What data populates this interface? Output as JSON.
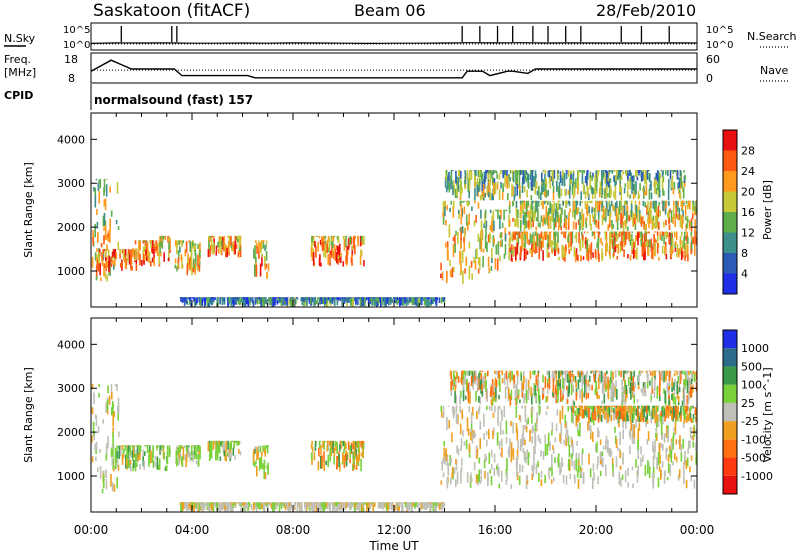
{
  "header": {
    "station": "Saskatoon  (fitACF)",
    "beam": "Beam 06",
    "date": "28/Feb/2010"
  },
  "left_labels": {
    "nsky": "N.Sky",
    "freq_line1": "Freq.",
    "freq_line2": "[MHz]",
    "cpid": "CPID"
  },
  "right_labels": {
    "nsearch": "N.Search",
    "nave": "Nave"
  },
  "cpid_text": "normalsound (fast) 157",
  "chart_data": [
    {
      "type": "line",
      "panel": "noise",
      "series": [
        {
          "name": "N.Sky",
          "style": "solid"
        },
        {
          "name": "N.Search",
          "style": "dotted"
        }
      ],
      "y_ticks": [
        "10^5",
        "10^0"
      ],
      "x": [
        0,
        1,
        2,
        3,
        4,
        5,
        6,
        7,
        8,
        9,
        10,
        11,
        12,
        13,
        14,
        15,
        16,
        17,
        18,
        19,
        20,
        21,
        22,
        23,
        24
      ],
      "values": [
        1.0,
        1.3,
        1.2,
        1.3,
        1.1,
        1.1,
        1.2,
        1.1,
        1.3,
        1.2,
        1.1,
        1.0,
        1.1,
        1.1,
        1.2,
        1.4,
        1.3,
        1.4,
        1.2,
        1.3,
        1.2,
        1.2,
        1.2,
        1.3,
        1.2
      ],
      "spikes": [
        1.2,
        3.2,
        3.4,
        14.7,
        15.4,
        16.1,
        16.7,
        17.5,
        18.1,
        18.8,
        19.4,
        21.0,
        21.8,
        22.9
      ]
    },
    {
      "type": "line",
      "panel": "frequency",
      "ylabel": "Freq. [MHz]",
      "y_ticks_left": [
        "18",
        "8"
      ],
      "y_ticks_right": [
        "60",
        "0"
      ],
      "series": [
        {
          "name": "Freq.",
          "style": "solid",
          "x": [
            0,
            0.8,
            1.2,
            1.6,
            3.3,
            3.6,
            6.2,
            6.5,
            14.7,
            14.9,
            15.5,
            15.8,
            16.5,
            16.7,
            17.3,
            17.6,
            24
          ],
          "y": [
            12,
            17,
            15,
            13,
            13,
            10,
            10,
            9,
            9,
            12,
            12,
            10,
            12,
            12,
            11,
            13,
            13
          ]
        },
        {
          "name": "Nave",
          "style": "dotted",
          "x": [
            0,
            24
          ],
          "y": [
            27,
            27
          ]
        }
      ]
    },
    {
      "type": "heatmap",
      "panel": "power",
      "xlabel": "",
      "ylabel": "Slant Range [km]",
      "colorbar_label": "Power [dB]",
      "colorbar_ticks": [
        4,
        8,
        12,
        16,
        20,
        24,
        28
      ],
      "colorbar_colors": [
        "#1e2fe6",
        "#2c5bb5",
        "#3c8f8a",
        "#5fae4c",
        "#c8c83a",
        "#ff9a1e",
        "#ff5a14",
        "#e81010"
      ],
      "x_range": [
        0,
        24
      ],
      "y_range": [
        180,
        4600
      ],
      "y_ticks": [
        1000,
        2000,
        3000,
        4000
      ],
      "regions": [
        {
          "t0": 0.0,
          "t1": 1.1,
          "r0": 700,
          "r1": 3100,
          "level": 0.55
        },
        {
          "t0": 0.2,
          "t1": 1.0,
          "r0": 900,
          "r1": 1500,
          "level": 0.85
        },
        {
          "t0": 1.1,
          "t1": 1.8,
          "r0": 1000,
          "r1": 1500,
          "level": 0.8
        },
        {
          "t0": 1.6,
          "t1": 2.7,
          "r0": 1100,
          "r1": 1700,
          "level": 0.75
        },
        {
          "t0": 2.7,
          "t1": 3.1,
          "r0": 1200,
          "r1": 1800,
          "level": 0.7
        },
        {
          "t0": 3.3,
          "t1": 4.3,
          "r0": 900,
          "r1": 1700,
          "level": 0.6
        },
        {
          "t0": 4.6,
          "t1": 5.9,
          "r0": 1300,
          "r1": 1800,
          "level": 0.7
        },
        {
          "t0": 6.4,
          "t1": 7.0,
          "r0": 800,
          "r1": 1700,
          "level": 0.65
        },
        {
          "t0": 8.7,
          "t1": 10.8,
          "r0": 1100,
          "r1": 1800,
          "level": 0.75
        },
        {
          "t0": 13.8,
          "t1": 15.4,
          "r0": 700,
          "r1": 2600,
          "level": 0.6
        },
        {
          "t0": 15.4,
          "t1": 16.5,
          "r0": 900,
          "r1": 2400,
          "level": 0.55
        },
        {
          "t0": 16.5,
          "t1": 24.0,
          "r0": 1200,
          "r1": 1900,
          "level": 0.7
        },
        {
          "t0": 16.5,
          "t1": 24.0,
          "r0": 1900,
          "r1": 2600,
          "level": 0.55
        },
        {
          "t0": 14.0,
          "t1": 23.5,
          "r0": 2600,
          "r1": 3300,
          "level": 0.4
        },
        {
          "t0": 3.5,
          "t1": 14.0,
          "r0": 180,
          "r1": 400,
          "level": 0.2
        }
      ]
    },
    {
      "type": "heatmap",
      "panel": "velocity",
      "xlabel": "Time UT",
      "ylabel": "Slant Range [km]",
      "colorbar_label": "Velocity [m s^-1]",
      "colorbar_ticks": [
        "1000",
        "500",
        "100",
        "25",
        "-25",
        "-100",
        "-500",
        "-1000"
      ],
      "colorbar_colors": [
        "#1e2fe6",
        "#2c6c8a",
        "#3a9a4a",
        "#7ad13a",
        "#c0c0b8",
        "#f0a020",
        "#ff7010",
        "#ff3a10",
        "#e81010"
      ],
      "x_range": [
        0,
        24
      ],
      "y_range": [
        180,
        4600
      ],
      "x_ticks": [
        "00:00",
        "04:00",
        "08:00",
        "12:00",
        "16:00",
        "20:00",
        "00:00"
      ],
      "y_ticks": [
        1000,
        2000,
        3000,
        4000
      ],
      "regions": [
        {
          "t0": 0.0,
          "t1": 1.1,
          "r0": 600,
          "r1": 3100,
          "class": "grey"
        },
        {
          "t0": 0.8,
          "t1": 3.1,
          "r0": 1100,
          "r1": 1700,
          "class": "green"
        },
        {
          "t0": 3.3,
          "t1": 4.3,
          "r0": 1200,
          "r1": 1700,
          "class": "green"
        },
        {
          "t0": 4.6,
          "t1": 5.9,
          "r0": 1300,
          "r1": 1800,
          "class": "green"
        },
        {
          "t0": 6.4,
          "t1": 7.0,
          "r0": 900,
          "r1": 1700,
          "class": "green"
        },
        {
          "t0": 8.7,
          "t1": 10.8,
          "r0": 1100,
          "r1": 1800,
          "class": "orange"
        },
        {
          "t0": 13.8,
          "t1": 24.0,
          "r0": 700,
          "r1": 2600,
          "class": "grey"
        },
        {
          "t0": 19.0,
          "t1": 24.0,
          "r0": 2200,
          "r1": 2600,
          "class": "orange"
        },
        {
          "t0": 14.2,
          "t1": 24.0,
          "r0": 2600,
          "r1": 3400,
          "class": "mixed"
        },
        {
          "t0": 3.5,
          "t1": 14.0,
          "r0": 180,
          "r1": 400,
          "class": "grey"
        }
      ]
    }
  ]
}
